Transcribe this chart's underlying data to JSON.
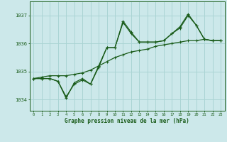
{
  "title": "Graphe pression niveau de la mer (hPa)",
  "background_color": "#cce8ea",
  "grid_color": "#aad4d4",
  "line_color": "#1a5c1a",
  "x_ticks": [
    0,
    1,
    2,
    3,
    4,
    5,
    6,
    7,
    8,
    9,
    10,
    11,
    12,
    13,
    14,
    15,
    16,
    17,
    18,
    19,
    20,
    21,
    22,
    23
  ],
  "yticks": [
    1034,
    1035,
    1036,
    1037
  ],
  "ylim": [
    1033.6,
    1037.5
  ],
  "xlim": [
    -0.5,
    23.5
  ],
  "series1": [
    1034.75,
    1034.75,
    1034.75,
    1034.65,
    1034.05,
    1034.6,
    1034.75,
    1034.55,
    1035.2,
    1035.85,
    1035.85,
    1036.8,
    1036.4,
    1036.05,
    1036.05,
    1036.05,
    1036.1,
    1036.35,
    1036.6,
    1037.05,
    1036.65,
    1036.15,
    1036.1,
    1036.1
  ],
  "series2": [
    1034.75,
    1034.75,
    1034.75,
    1034.65,
    1034.1,
    1034.55,
    1034.7,
    1034.55,
    1035.15,
    1035.85,
    1035.85,
    1036.75,
    1036.35,
    1036.05,
    1036.05,
    1036.05,
    1036.1,
    1036.35,
    1036.55,
    1037.0,
    1036.65,
    1036.15,
    1036.1,
    1036.1
  ],
  "series3": [
    1034.75,
    1034.8,
    1034.85,
    1034.85,
    1034.85,
    1034.9,
    1034.95,
    1035.05,
    1035.2,
    1035.35,
    1035.5,
    1035.6,
    1035.7,
    1035.75,
    1035.8,
    1035.9,
    1035.95,
    1036.0,
    1036.05,
    1036.1,
    1036.1,
    1036.15,
    1036.1,
    1036.1
  ]
}
